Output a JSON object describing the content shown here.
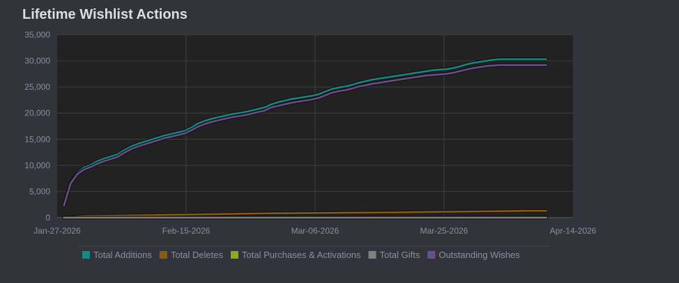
{
  "title": "Lifetime Wishlist Actions",
  "chart_data": {
    "type": "line",
    "title": "Lifetime Wishlist Actions",
    "xlabel": "",
    "ylabel": "",
    "x_ticks": [
      "Jan-27-2026",
      "Feb-15-2026",
      "Mar-06-2026",
      "Mar-25-2026",
      "Apr-14-2026"
    ],
    "x_range_days": [
      0,
      77
    ],
    "ylim": [
      0,
      35000
    ],
    "y_ticks": [
      0,
      5000,
      10000,
      15000,
      20000,
      25000,
      30000,
      35000
    ],
    "y_tick_labels": [
      "0",
      "5,000",
      "10,000",
      "15,000",
      "20,000",
      "25,000",
      "30,000",
      "35,000"
    ],
    "grid": true,
    "legend_position": "bottom",
    "series": [
      {
        "name": "Total Additions",
        "color": "#138a85",
        "x": [
          1,
          2,
          3,
          4,
          5,
          6,
          7,
          8,
          9,
          10,
          11,
          12,
          13,
          14,
          15,
          16,
          17,
          18,
          19,
          20,
          21,
          22,
          23,
          24,
          25,
          26,
          27,
          28,
          29,
          30,
          31,
          32,
          33,
          34,
          35,
          36,
          37,
          38,
          39,
          40,
          41,
          42,
          43,
          44,
          45,
          46,
          47,
          48,
          49,
          50,
          51,
          52,
          53,
          54,
          55,
          56,
          57,
          58,
          59,
          60,
          61,
          62,
          63,
          64,
          65,
          66,
          67,
          68,
          69,
          70,
          71,
          72,
          73
        ],
        "values": [
          2500,
          6800,
          8600,
          9600,
          10100,
          10800,
          11300,
          11700,
          12100,
          12900,
          13600,
          14100,
          14500,
          14900,
          15300,
          15700,
          16000,
          16300,
          16600,
          17200,
          18000,
          18500,
          18900,
          19200,
          19500,
          19800,
          20000,
          20200,
          20500,
          20800,
          21100,
          21700,
          22100,
          22400,
          22700,
          22900,
          23100,
          23300,
          23600,
          24100,
          24600,
          24900,
          25100,
          25400,
          25800,
          26100,
          26400,
          26600,
          26800,
          27000,
          27200,
          27400,
          27600,
          27800,
          28000,
          28200,
          28300,
          28400,
          28600,
          28900,
          29300,
          29600,
          29800,
          30000,
          30200,
          30300,
          30300,
          30300,
          30300,
          30300,
          30300,
          30300,
          30300
        ]
      },
      {
        "name": "Total Deletes",
        "color": "#8b5a10",
        "x": [
          1,
          4,
          10,
          20,
          30,
          40,
          50,
          60,
          70,
          73
        ],
        "values": [
          0,
          300,
          400,
          600,
          800,
          900,
          1000,
          1150,
          1300,
          1300
        ]
      },
      {
        "name": "Total Purchases & Activations",
        "color": "#8faa14",
        "x": [
          1,
          73
        ],
        "values": [
          0,
          60
        ]
      },
      {
        "name": "Total Gifts",
        "color": "#808080",
        "x": [
          1,
          73
        ],
        "values": [
          0,
          0
        ]
      },
      {
        "name": "Outstanding Wishes",
        "color": "#6b4f8d",
        "x": [
          1,
          2,
          3,
          4,
          5,
          6,
          7,
          8,
          9,
          10,
          11,
          12,
          13,
          14,
          15,
          16,
          17,
          18,
          19,
          20,
          21,
          22,
          23,
          24,
          25,
          26,
          27,
          28,
          29,
          30,
          31,
          32,
          33,
          34,
          35,
          36,
          37,
          38,
          39,
          40,
          41,
          42,
          43,
          44,
          45,
          46,
          47,
          48,
          49,
          50,
          51,
          52,
          53,
          54,
          55,
          56,
          57,
          58,
          59,
          60,
          61,
          62,
          63,
          64,
          65,
          66,
          67,
          68,
          69,
          70,
          71,
          72,
          73
        ],
        "values": [
          2300,
          6500,
          8300,
          9200,
          9700,
          10300,
          10800,
          11200,
          11600,
          12400,
          13100,
          13600,
          14000,
          14400,
          14800,
          15200,
          15500,
          15800,
          16100,
          16700,
          17400,
          17900,
          18300,
          18600,
          18900,
          19200,
          19400,
          19600,
          19900,
          20200,
          20500,
          21100,
          21400,
          21700,
          22000,
          22200,
          22400,
          22600,
          22900,
          23400,
          23900,
          24200,
          24400,
          24700,
          25100,
          25300,
          25600,
          25800,
          26000,
          26200,
          26400,
          26600,
          26800,
          27000,
          27200,
          27300,
          27400,
          27500,
          27700,
          28000,
          28300,
          28600,
          28800,
          29000,
          29100,
          29200,
          29200,
          29200,
          29200,
          29200,
          29200,
          29200,
          29200
        ]
      }
    ]
  }
}
